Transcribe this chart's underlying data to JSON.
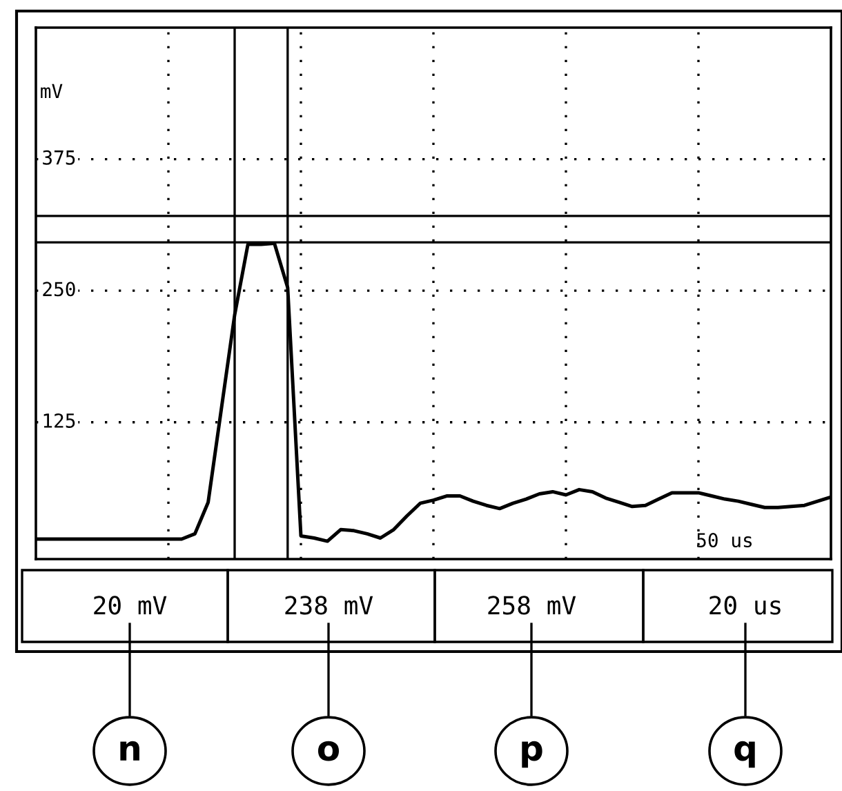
{
  "chart_data": {
    "type": "line",
    "ylabel": "mV",
    "categories": [
      null,
      null,
      null,
      null,
      null,
      null,
      null,
      null,
      null,
      null,
      null,
      null,
      null,
      null,
      null,
      null,
      null,
      null,
      null,
      null,
      null,
      null,
      null,
      null,
      null,
      null,
      null,
      null,
      null,
      null,
      null,
      null,
      null,
      null,
      null,
      null,
      null,
      null,
      null,
      null,
      null,
      null,
      null,
      null,
      null,
      null,
      null,
      null,
      null,
      null,
      null,
      null,
      null,
      null,
      null,
      null,
      null,
      null,
      null,
      null,
      null
    ],
    "series": [
      {
        "color": "#000000",
        "values": [
          14,
          14,
          14,
          14,
          14,
          14,
          14,
          14,
          14,
          14,
          14,
          14,
          19,
          49,
          138,
          227,
          294,
          294,
          295,
          253,
          17,
          15,
          12,
          23,
          22,
          19,
          15,
          23,
          36,
          48,
          51,
          55,
          55,
          50,
          46,
          43,
          48,
          52,
          57,
          59,
          56,
          61,
          59,
          53,
          49,
          45,
          46,
          52,
          58,
          58,
          58,
          55,
          52,
          50,
          47,
          44,
          44,
          45,
          46,
          50,
          54
        ]
      }
    ],
    "ylim": [
      -5,
      500
    ],
    "yticks": [
      125,
      250,
      375
    ],
    "tick_labels": "y",
    "grid": true,
    "marker": "none",
    "line_style": "solid",
    "ref_lines": [
      {
        "axis": "y",
        "value": 321,
        "color": "#000000"
      },
      {
        "axis": "y",
        "value": 296,
        "color": "#000000"
      }
    ],
    "annotations": [
      "20 mV",
      "238 mV",
      "258 mV",
      "20 us",
      "n",
      "o",
      "p",
      "q",
      "50 us"
    ]
  }
}
